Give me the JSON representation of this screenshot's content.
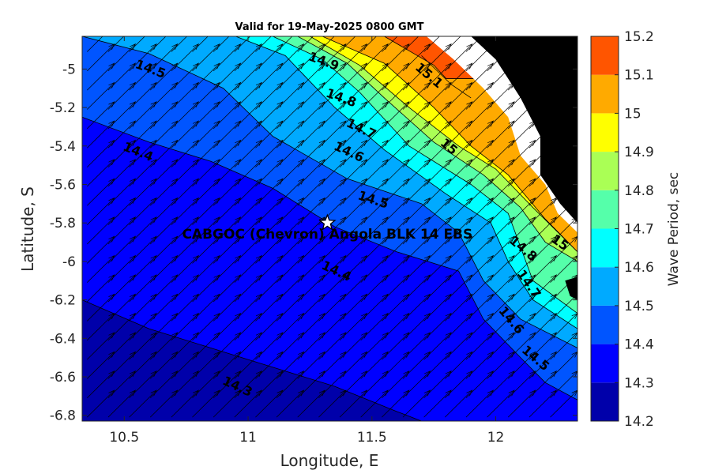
{
  "chart_data": {
    "type": "heatmap",
    "title": "Valid for 19-May-2025 0800 GMT",
    "xlabel": "Longitude, E",
    "ylabel": "Latitude, S",
    "xlim": [
      10.33,
      12.33
    ],
    "ylim": [
      -6.83,
      -4.83
    ],
    "xticks": [
      10.5,
      11,
      11.5,
      12
    ],
    "xtick_labels": [
      "10.5",
      "11",
      "11.5",
      "12"
    ],
    "yticks": [
      -5,
      -5.2,
      -5.4,
      -5.6,
      -5.8,
      -6,
      -6.2,
      -6.4,
      -6.6,
      -6.8
    ],
    "ytick_labels": [
      "-5",
      "-5.2",
      "-5.4",
      "-5.6",
      "-5.8",
      "-6",
      "-6.2",
      "-6.4",
      "-6.6",
      "-6.8"
    ],
    "colorbar": {
      "label": "Wave Period, sec",
      "levels": [
        14.2,
        14.3,
        14.4,
        14.5,
        14.6,
        14.7,
        14.8,
        14.9,
        15,
        15.1,
        15.2
      ],
      "level_labels": [
        "14.2",
        "14.3",
        "14.4",
        "14.5",
        "14.6",
        "14.7",
        "14.8",
        "14.9",
        "15",
        "15.1",
        "15.2"
      ],
      "colors": [
        "#0000aa",
        "#0000ff",
        "#0055ff",
        "#00aaff",
        "#00ffff",
        "#55ffaa",
        "#aaff55",
        "#ffff00",
        "#ffaa00",
        "#ff5500"
      ]
    },
    "contour_bands": [
      {
        "range": [
          14.2,
          14.3
        ],
        "boundary_upper": [
          [
            10.33,
            -6.2
          ],
          [
            10.6,
            -6.35
          ],
          [
            10.85,
            -6.45
          ],
          [
            11.1,
            -6.55
          ],
          [
            11.35,
            -6.65
          ],
          [
            11.6,
            -6.78
          ],
          [
            11.7,
            -6.83
          ]
        ]
      },
      {
        "range": [
          14.3,
          14.4
        ],
        "boundary_upper": [
          [
            10.33,
            -5.25
          ],
          [
            10.6,
            -5.38
          ],
          [
            10.85,
            -5.48
          ],
          [
            11.1,
            -5.62
          ],
          [
            11.35,
            -5.82
          ],
          [
            11.6,
            -5.95
          ],
          [
            11.85,
            -6.05
          ],
          [
            11.95,
            -6.3
          ],
          [
            12.1,
            -6.5
          ],
          [
            12.2,
            -6.63
          ],
          [
            12.33,
            -6.72
          ]
        ]
      },
      {
        "range": [
          14.4,
          14.5
        ],
        "boundary_upper": [
          [
            10.33,
            -4.83
          ],
          [
            10.6,
            -4.92
          ],
          [
            10.9,
            -5.1
          ],
          [
            11.1,
            -5.35
          ],
          [
            11.4,
            -5.57
          ],
          [
            11.7,
            -5.7
          ],
          [
            11.85,
            -5.85
          ],
          [
            11.95,
            -6.1
          ],
          [
            12.1,
            -6.3
          ],
          [
            12.33,
            -6.45
          ]
        ]
      },
      {
        "range": [
          14.5,
          14.6
        ],
        "boundary_upper": [
          [
            10.95,
            -4.83
          ],
          [
            11.15,
            -4.93
          ],
          [
            11.35,
            -5.2
          ],
          [
            11.55,
            -5.42
          ],
          [
            11.8,
            -5.65
          ],
          [
            11.98,
            -5.8
          ],
          [
            12.05,
            -6.0
          ],
          [
            12.15,
            -6.2
          ],
          [
            12.33,
            -6.35
          ]
        ]
      },
      {
        "range": [
          14.6,
          14.7
        ],
        "boundary_upper": [
          [
            11.1,
            -4.83
          ],
          [
            11.3,
            -4.95
          ],
          [
            11.45,
            -5.12
          ],
          [
            11.65,
            -5.4
          ],
          [
            11.9,
            -5.6
          ],
          [
            12.05,
            -5.75
          ],
          [
            12.15,
            -6.1
          ],
          [
            12.33,
            -6.27
          ]
        ]
      },
      {
        "range": [
          14.7,
          14.8
        ],
        "boundary_upper": [
          [
            11.2,
            -4.83
          ],
          [
            11.4,
            -4.97
          ],
          [
            11.55,
            -5.15
          ],
          [
            11.75,
            -5.38
          ],
          [
            11.95,
            -5.55
          ],
          [
            12.1,
            -5.72
          ],
          [
            12.2,
            -5.9
          ],
          [
            12.33,
            -6.0
          ]
        ]
      },
      {
        "range": [
          14.8,
          14.9
        ],
        "boundary_upper": [
          [
            11.25,
            -4.83
          ],
          [
            11.45,
            -4.98
          ],
          [
            11.65,
            -5.2
          ],
          [
            11.85,
            -5.4
          ],
          [
            12.0,
            -5.52
          ],
          [
            12.15,
            -5.72
          ],
          [
            12.33,
            -5.95
          ]
        ]
      },
      {
        "range": [
          14.9,
          15
        ],
        "boundary_upper": [
          [
            11.3,
            -4.83
          ],
          [
            11.55,
            -4.97
          ],
          [
            11.75,
            -5.2
          ],
          [
            11.9,
            -5.4
          ],
          [
            12.05,
            -5.55
          ],
          [
            12.2,
            -5.78
          ],
          [
            12.33,
            -5.95
          ]
        ]
      },
      {
        "range": [
          15,
          15.1
        ],
        "boundary_upper": [
          [
            11.55,
            -4.83
          ],
          [
            11.75,
            -4.98
          ],
          [
            11.8,
            -5.05
          ]
        ]
      },
      {
        "range": [
          15.1,
          15.2
        ],
        "boundary_upper": [
          [
            11.7,
            -4.93
          ],
          [
            11.82,
            -5.08
          ],
          [
            11.9,
            -5.15
          ]
        ]
      }
    ],
    "contour_labels": [
      {
        "text": "14.5",
        "x": 10.6,
        "y": -5.02,
        "angle": 20
      },
      {
        "text": "14.4",
        "x": 10.55,
        "y": -5.45,
        "angle": 22
      },
      {
        "text": "14.3",
        "x": 10.95,
        "y": -6.67,
        "angle": 25
      },
      {
        "text": "14.9",
        "x": 11.3,
        "y": -4.98,
        "angle": 20
      },
      {
        "text": "14.8",
        "x": 11.37,
        "y": -5.17,
        "angle": 20
      },
      {
        "text": "14.7",
        "x": 11.45,
        "y": -5.33,
        "angle": 25
      },
      {
        "text": "14.6",
        "x": 11.4,
        "y": -5.45,
        "angle": 25
      },
      {
        "text": "14.5",
        "x": 11.5,
        "y": -5.7,
        "angle": 18
      },
      {
        "text": "14.4",
        "x": 11.35,
        "y": -6.07,
        "angle": 25
      },
      {
        "text": "15.1",
        "x": 11.72,
        "y": -5.05,
        "angle": 40
      },
      {
        "text": "15",
        "x": 11.8,
        "y": -5.42,
        "angle": 40
      },
      {
        "text": "14.8",
        "x": 12.1,
        "y": -5.95,
        "angle": 40
      },
      {
        "text": "15",
        "x": 12.25,
        "y": -5.92,
        "angle": 35
      },
      {
        "text": "14.7",
        "x": 12.12,
        "y": -6.13,
        "angle": 55
      },
      {
        "text": "14.6",
        "x": 12.05,
        "y": -6.32,
        "angle": 50
      },
      {
        "text": "14.5",
        "x": 12.15,
        "y": -6.52,
        "angle": 40
      }
    ],
    "marker": {
      "label": "CABGOC (Chevron)  Angola BLK 14  EBS",
      "symbol": "star",
      "x": 11.32,
      "y": -5.8
    },
    "vectors": {
      "description": "wave direction arrows pointing to the NE",
      "dx": 0.11,
      "dy": 0.14
    },
    "land_color": "#000000"
  }
}
